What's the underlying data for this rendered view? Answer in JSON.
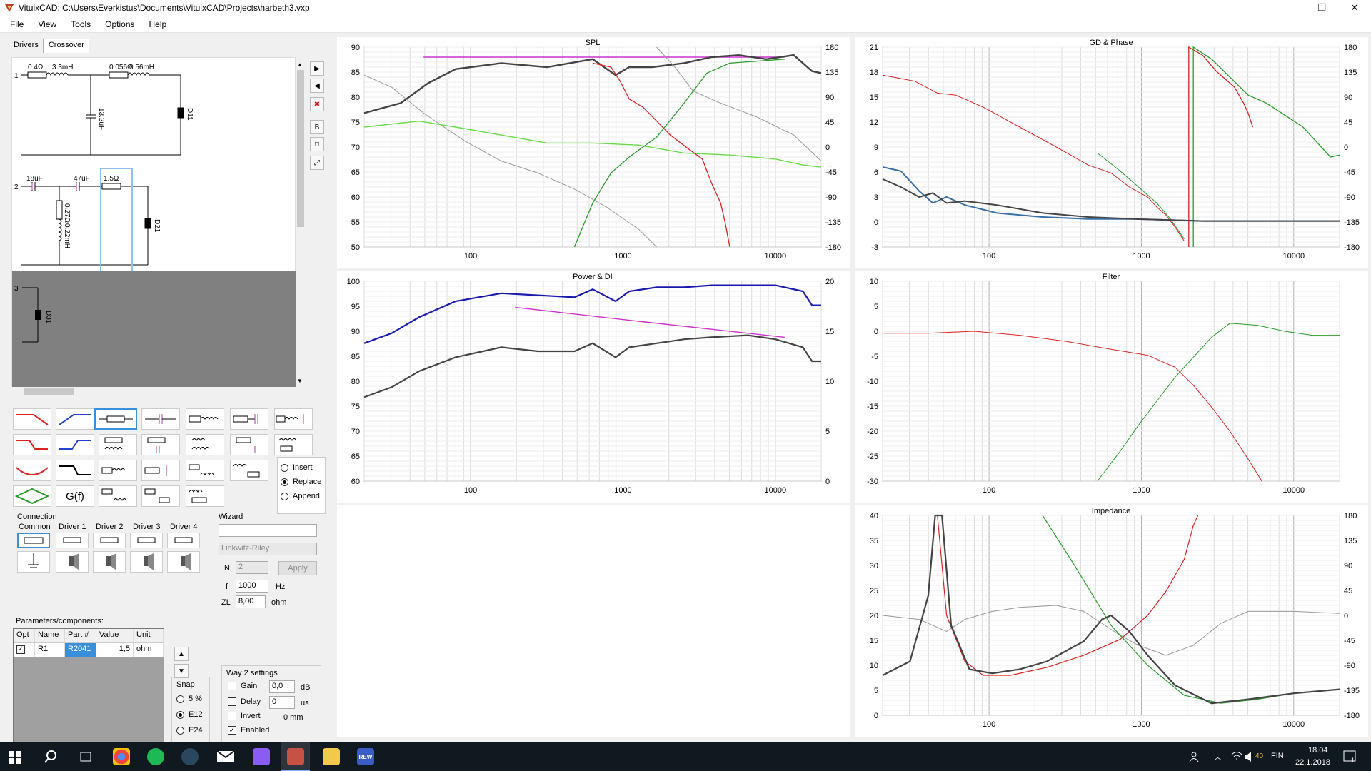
{
  "window": {
    "title": "VituixCAD: C:\\Users\\Everkistus\\Documents\\VituixCAD\\Projects\\harbeth3.vxp",
    "minimize": "—",
    "restore": "❐",
    "close": "✕"
  },
  "menu": [
    "File",
    "View",
    "Tools",
    "Options",
    "Help"
  ],
  "tabs": [
    "Drivers",
    "Crossover"
  ],
  "schematic": {
    "way1": {
      "num": "1",
      "labels": [
        "0.4Ω",
        "3.3mH",
        "0.056Ω",
        "0.56mH",
        "13.2uF",
        "D11"
      ]
    },
    "way2": {
      "num": "2",
      "labels": [
        "18uF",
        "47uF",
        "1.5Ω",
        "0.27Ω",
        "0.22mH",
        "D21"
      ]
    },
    "way3": {
      "num": "3",
      "labels": [
        "D31"
      ]
    }
  },
  "side_buttons": [
    "▶",
    "◀",
    "✖",
    "B",
    "□",
    "⤢"
  ],
  "palette_special": "G(f)",
  "insert_mode": {
    "options": [
      "Insert",
      "Replace",
      "Append"
    ],
    "selected": "Replace"
  },
  "connection": {
    "title": "Connection",
    "tabs": [
      "Common",
      "Driver 1",
      "Driver 2",
      "Driver 3",
      "Driver 4"
    ]
  },
  "wizard": {
    "title": "Wizard",
    "type": "",
    "alignment": "Linkwitz-Riley",
    "n_label": "N",
    "n_value": "2",
    "apply": "Apply",
    "f_label": "f",
    "f_value": "1000",
    "f_unit": "Hz",
    "zl_label": "ZL",
    "zl_value": "8,00",
    "zl_unit": "ohm"
  },
  "parameters": {
    "title": "Parameters/components:",
    "headers": [
      "Opt",
      "Name",
      "Part #",
      "Value",
      "Unit"
    ],
    "rows": [
      {
        "opt": "✓",
        "name": "R1",
        "part": "R2041",
        "value": "1,5",
        "unit": "ohm"
      }
    ]
  },
  "snap": {
    "title": "Snap",
    "options": [
      "5 %",
      "E12",
      "E24"
    ],
    "selected": "E12"
  },
  "way_settings": {
    "title": "Way 2 settings",
    "gain_label": "Gain",
    "gain_value": "0,0",
    "gain_unit": "dB",
    "delay_label": "Delay",
    "delay_value": "0",
    "delay_unit": "us",
    "invert_label": "Invert",
    "mm": "0 mm",
    "enabled_label": "Enabled",
    "enabled": true
  },
  "charts": [
    {
      "id": "spl",
      "title": "SPL",
      "ylim": [
        50,
        90
      ],
      "y2lim": [
        -180,
        180
      ],
      "yticks": [
        50,
        55,
        60,
        65,
        70,
        75,
        80,
        85,
        90
      ],
      "y2ticks": [
        -180,
        -135,
        -90,
        -45,
        0,
        45,
        90,
        135,
        180
      ],
      "xticks": [
        "100",
        "1000",
        "10000"
      ]
    },
    {
      "id": "gd",
      "title": "GD & Phase",
      "ylim": [
        -3,
        21
      ],
      "y2lim": [
        -180,
        180
      ],
      "yticks": [
        -3,
        0,
        3,
        6,
        9,
        12,
        15,
        18,
        21
      ],
      "y2ticks": [
        -180,
        -135,
        -90,
        -45,
        0,
        45,
        90,
        135,
        180
      ],
      "xticks": [
        "100",
        "1000",
        "10000"
      ]
    },
    {
      "id": "power",
      "title": "Power & DI",
      "ylim": [
        60,
        100
      ],
      "y2lim": [
        0,
        20
      ],
      "yticks": [
        60,
        65,
        70,
        75,
        80,
        85,
        90,
        95,
        100
      ],
      "y2ticks": [
        0,
        5,
        10,
        15,
        20
      ],
      "xticks": [
        "100",
        "1000",
        "10000"
      ]
    },
    {
      "id": "filter",
      "title": "Filter",
      "ylim": [
        -30,
        10
      ],
      "yticks": [
        -30,
        -25,
        -20,
        -15,
        -10,
        -5,
        0,
        5,
        10
      ],
      "y2ticks": [],
      "xticks": [
        "100",
        "1000",
        "10000"
      ]
    },
    {
      "id": "imp",
      "title": "Impedance",
      "ylim": [
        0,
        40
      ],
      "y2lim": [
        -180,
        180
      ],
      "yticks": [
        0,
        5,
        10,
        15,
        20,
        25,
        30,
        35,
        40
      ],
      "y2ticks": [
        -180,
        -135,
        -90,
        -45,
        0,
        45,
        90,
        135,
        180
      ],
      "xticks": [
        "100",
        "1000",
        "10000"
      ]
    }
  ],
  "colors": {
    "red": "#dd2222",
    "green": "#2a9a2a",
    "lightgreen": "#66dd44",
    "gray": "#999999",
    "dark": "#444444",
    "blue": "#1a1ab0",
    "magenta": "#cc33cc",
    "steel": "#3a6ea8"
  },
  "taskbar": {
    "lang": "FIN",
    "time": "18.04",
    "date": "22.1.2018",
    "volume": "40",
    "notif": "1",
    "rew": "REW"
  }
}
